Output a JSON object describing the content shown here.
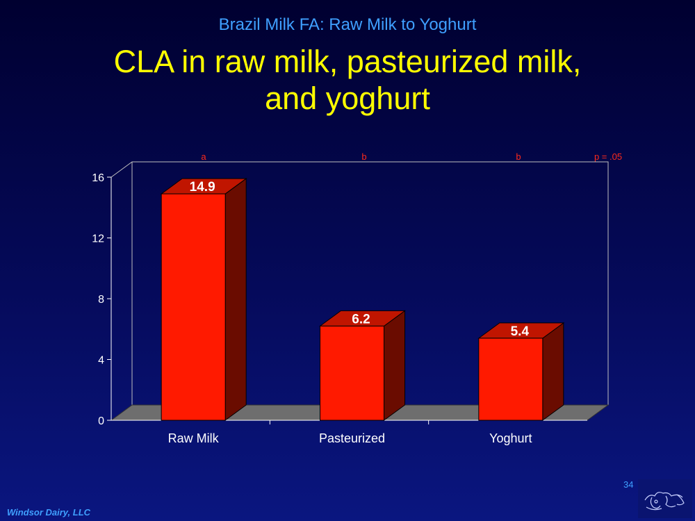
{
  "slide": {
    "subtitle": "Brazil Milk FA: Raw Milk to Yoghurt",
    "title_line1": "CLA in raw milk, pasteurized milk,",
    "title_line2": "and yoghurt",
    "footer": "Windsor Dairy, LLC",
    "page_number": "34"
  },
  "chart_data": {
    "type": "bar",
    "categories": [
      "Raw Milk",
      "Pasteurized",
      "Yoghurt"
    ],
    "values": [
      14.9,
      6.2,
      5.4
    ],
    "data_labels": [
      "14.9",
      "6.2",
      "5.4"
    ],
    "significance_letters": [
      "a",
      "b",
      "b"
    ],
    "significance_note": "p = .05",
    "ylim": [
      0,
      16
    ],
    "yticks": [
      0,
      4,
      8,
      12,
      16
    ],
    "grid": false,
    "bar_color": "#ff1a00",
    "bar_side_color": "#6a0c00",
    "bar_top_color": "#c01500",
    "floor_color": "#6e6e6e",
    "annotation_color": "#ff2a1a"
  }
}
